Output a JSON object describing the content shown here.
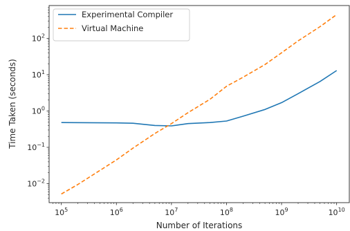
{
  "chart_data": {
    "type": "line",
    "title": "",
    "xlabel": "Number of Iterations",
    "ylabel": "Time Taken (seconds)",
    "x_scale": "log",
    "y_scale": "log",
    "xlim": [
      60000,
      17000000000
    ],
    "ylim": [
      0.003,
      800
    ],
    "grid": false,
    "legend_position": "top-left",
    "x_ticks": [
      {
        "value": 100000,
        "base": "10",
        "exp": "5"
      },
      {
        "value": 1000000,
        "base": "10",
        "exp": "6"
      },
      {
        "value": 10000000,
        "base": "10",
        "exp": "7"
      },
      {
        "value": 100000000,
        "base": "10",
        "exp": "8"
      },
      {
        "value": 1000000000,
        "base": "10",
        "exp": "9"
      },
      {
        "value": 10000000000,
        "base": "10",
        "exp": "10"
      }
    ],
    "y_ticks": [
      {
        "value": 0.01,
        "base": "10",
        "exp": "−2"
      },
      {
        "value": 0.1,
        "base": "10",
        "exp": "−1"
      },
      {
        "value": 1,
        "base": "10",
        "exp": "0"
      },
      {
        "value": 10,
        "base": "10",
        "exp": "1"
      },
      {
        "value": 100,
        "base": "10",
        "exp": "2"
      }
    ],
    "series": [
      {
        "name": "Experimental Compiler",
        "color": "#1f77b4",
        "style": "solid",
        "x": [
          100000,
          1000000,
          2000000,
          5000000,
          10000000,
          20000000,
          50000000,
          100000000,
          200000000,
          500000000,
          1000000000,
          2000000000,
          5000000000,
          10000000000
        ],
        "y": [
          0.48,
          0.47,
          0.46,
          0.4,
          0.39,
          0.45,
          0.48,
          0.53,
          0.72,
          1.1,
          1.7,
          3.0,
          6.5,
          13
        ]
      },
      {
        "name": "Virtual Machine",
        "color": "#ff7f0e",
        "style": "dashed",
        "x": [
          100000,
          200000,
          500000,
          1000000,
          2000000,
          5000000,
          10000000,
          20000000,
          50000000,
          100000000,
          200000000,
          500000000,
          1000000000,
          2000000000,
          5000000000,
          10000000000
        ],
        "y": [
          0.0052,
          0.0095,
          0.023,
          0.045,
          0.095,
          0.24,
          0.45,
          0.9,
          2.1,
          4.8,
          8.5,
          19,
          40,
          85,
          210,
          450
        ]
      }
    ]
  }
}
